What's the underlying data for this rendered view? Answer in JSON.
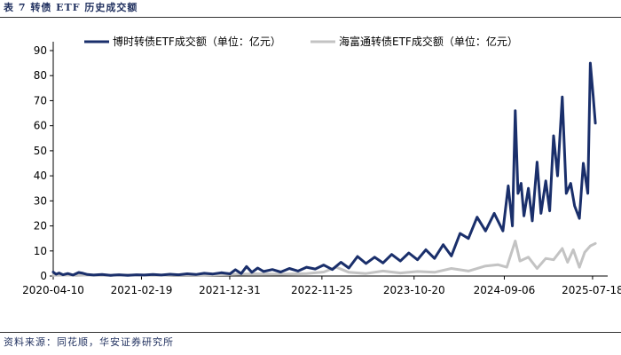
{
  "caption": "表 7 转债 ETF 历史成交额",
  "source": "资料来源：同花顺，华安证券研究所",
  "colors": {
    "series1": "#1a2f6b",
    "series2": "#c3c3c3"
  },
  "chart_data": {
    "type": "line",
    "ylim": [
      0,
      90
    ],
    "yticks": [
      0,
      10,
      20,
      30,
      40,
      50,
      60,
      70,
      80,
      90
    ],
    "xlim": [
      "2020-04-10",
      "2025-09-10"
    ],
    "xticks": [
      "2020-04-10",
      "2021-02-19",
      "2021-12-31",
      "2022-11-25",
      "2023-10-20",
      "2024-09-06",
      "2025-07-18"
    ],
    "legend_position": "top",
    "series": [
      {
        "name": "博时转债ETF成交额（单位：亿元）",
        "color": "#1a2f6b",
        "points": [
          [
            "2020-04-10",
            1.6
          ],
          [
            "2020-04-20",
            0.7
          ],
          [
            "2020-05-01",
            1.2
          ],
          [
            "2020-05-15",
            0.5
          ],
          [
            "2020-06-01",
            1.0
          ],
          [
            "2020-06-20",
            0.4
          ],
          [
            "2020-07-10",
            1.4
          ],
          [
            "2020-07-25",
            1.1
          ],
          [
            "2020-08-10",
            0.6
          ],
          [
            "2020-09-01",
            0.4
          ],
          [
            "2020-10-01",
            0.6
          ],
          [
            "2020-11-01",
            0.3
          ],
          [
            "2020-12-01",
            0.5
          ],
          [
            "2021-01-01",
            0.3
          ],
          [
            "2021-02-01",
            0.5
          ],
          [
            "2021-03-01",
            0.4
          ],
          [
            "2021-04-01",
            0.6
          ],
          [
            "2021-05-01",
            0.4
          ],
          [
            "2021-06-01",
            0.7
          ],
          [
            "2021-07-01",
            0.5
          ],
          [
            "2021-08-01",
            0.9
          ],
          [
            "2021-09-01",
            0.6
          ],
          [
            "2021-10-01",
            1.1
          ],
          [
            "2021-11-01",
            0.8
          ],
          [
            "2021-12-01",
            1.3
          ],
          [
            "2022-01-01",
            0.9
          ],
          [
            "2022-01-20",
            2.5
          ],
          [
            "2022-02-10",
            1.0
          ],
          [
            "2022-03-01",
            3.8
          ],
          [
            "2022-03-20",
            1.5
          ],
          [
            "2022-04-10",
            3.2
          ],
          [
            "2022-05-01",
            1.8
          ],
          [
            "2022-06-01",
            2.6
          ],
          [
            "2022-07-01",
            1.6
          ],
          [
            "2022-08-01",
            3.0
          ],
          [
            "2022-09-01",
            2.0
          ],
          [
            "2022-10-01",
            3.5
          ],
          [
            "2022-11-01",
            2.8
          ],
          [
            "2022-12-01",
            4.4
          ],
          [
            "2023-01-01",
            2.6
          ],
          [
            "2023-02-01",
            5.5
          ],
          [
            "2023-03-01",
            3.2
          ],
          [
            "2023-04-01",
            7.8
          ],
          [
            "2023-05-01",
            5.0
          ],
          [
            "2023-06-01",
            7.5
          ],
          [
            "2023-07-01",
            5.2
          ],
          [
            "2023-08-01",
            8.6
          ],
          [
            "2023-09-01",
            6.0
          ],
          [
            "2023-10-01",
            9.2
          ],
          [
            "2023-11-01",
            6.5
          ],
          [
            "2023-12-01",
            10.5
          ],
          [
            "2024-01-01",
            7.0
          ],
          [
            "2024-02-01",
            12.5
          ],
          [
            "2024-03-01",
            8.0
          ],
          [
            "2024-04-01",
            17.0
          ],
          [
            "2024-05-01",
            15.0
          ],
          [
            "2024-06-01",
            23.5
          ],
          [
            "2024-07-01",
            18.0
          ],
          [
            "2024-08-01",
            25.0
          ],
          [
            "2024-09-01",
            18.0
          ],
          [
            "2024-09-20",
            36.0
          ],
          [
            "2024-10-05",
            20.0
          ],
          [
            "2024-10-15",
            66.0
          ],
          [
            "2024-10-25",
            33.0
          ],
          [
            "2024-11-05",
            37.0
          ],
          [
            "2024-11-15",
            24.0
          ],
          [
            "2024-12-01",
            35.0
          ],
          [
            "2024-12-15",
            22.0
          ],
          [
            "2025-01-01",
            45.5
          ],
          [
            "2025-01-15",
            25.0
          ],
          [
            "2025-02-01",
            38.0
          ],
          [
            "2025-02-15",
            26.0
          ],
          [
            "2025-03-01",
            56.0
          ],
          [
            "2025-03-15",
            40.0
          ],
          [
            "2025-04-01",
            71.5
          ],
          [
            "2025-04-15",
            33.0
          ],
          [
            "2025-05-01",
            37.0
          ],
          [
            "2025-05-15",
            28.0
          ],
          [
            "2025-06-01",
            23.0
          ],
          [
            "2025-06-15",
            45.0
          ],
          [
            "2025-07-01",
            33.0
          ],
          [
            "2025-07-10",
            85.0
          ],
          [
            "2025-07-20",
            72.0
          ],
          [
            "2025-07-28",
            61.0
          ]
        ]
      },
      {
        "name": "海富通转债ETF成交额（单位：亿元）",
        "color": "#c3c3c3",
        "points": [
          [
            "2020-04-10",
            0.3
          ],
          [
            "2020-07-01",
            0.4
          ],
          [
            "2020-10-01",
            0.3
          ],
          [
            "2021-01-01",
            0.4
          ],
          [
            "2021-04-01",
            0.3
          ],
          [
            "2021-07-01",
            0.5
          ],
          [
            "2021-10-01",
            0.4
          ],
          [
            "2022-01-01",
            0.6
          ],
          [
            "2022-04-01",
            0.9
          ],
          [
            "2022-07-01",
            0.7
          ],
          [
            "2022-10-01",
            1.0
          ],
          [
            "2022-12-01",
            1.6
          ],
          [
            "2023-01-15",
            3.5
          ],
          [
            "2023-03-01",
            1.5
          ],
          [
            "2023-05-01",
            1.0
          ],
          [
            "2023-07-01",
            2.0
          ],
          [
            "2023-09-01",
            1.2
          ],
          [
            "2023-11-01",
            1.8
          ],
          [
            "2024-01-01",
            1.5
          ],
          [
            "2024-03-01",
            3.0
          ],
          [
            "2024-05-01",
            2.0
          ],
          [
            "2024-07-01",
            4.0
          ],
          [
            "2024-08-15",
            4.5
          ],
          [
            "2024-09-15",
            3.5
          ],
          [
            "2024-10-15",
            14.0
          ],
          [
            "2024-11-01",
            6.0
          ],
          [
            "2024-12-01",
            7.5
          ],
          [
            "2025-01-01",
            3.0
          ],
          [
            "2025-02-01",
            7.0
          ],
          [
            "2025-03-01",
            6.5
          ],
          [
            "2025-04-01",
            11.0
          ],
          [
            "2025-04-20",
            5.5
          ],
          [
            "2025-05-10",
            10.5
          ],
          [
            "2025-06-01",
            3.5
          ],
          [
            "2025-06-20",
            9.5
          ],
          [
            "2025-07-10",
            12.0
          ],
          [
            "2025-07-28",
            13.0
          ]
        ]
      }
    ]
  }
}
